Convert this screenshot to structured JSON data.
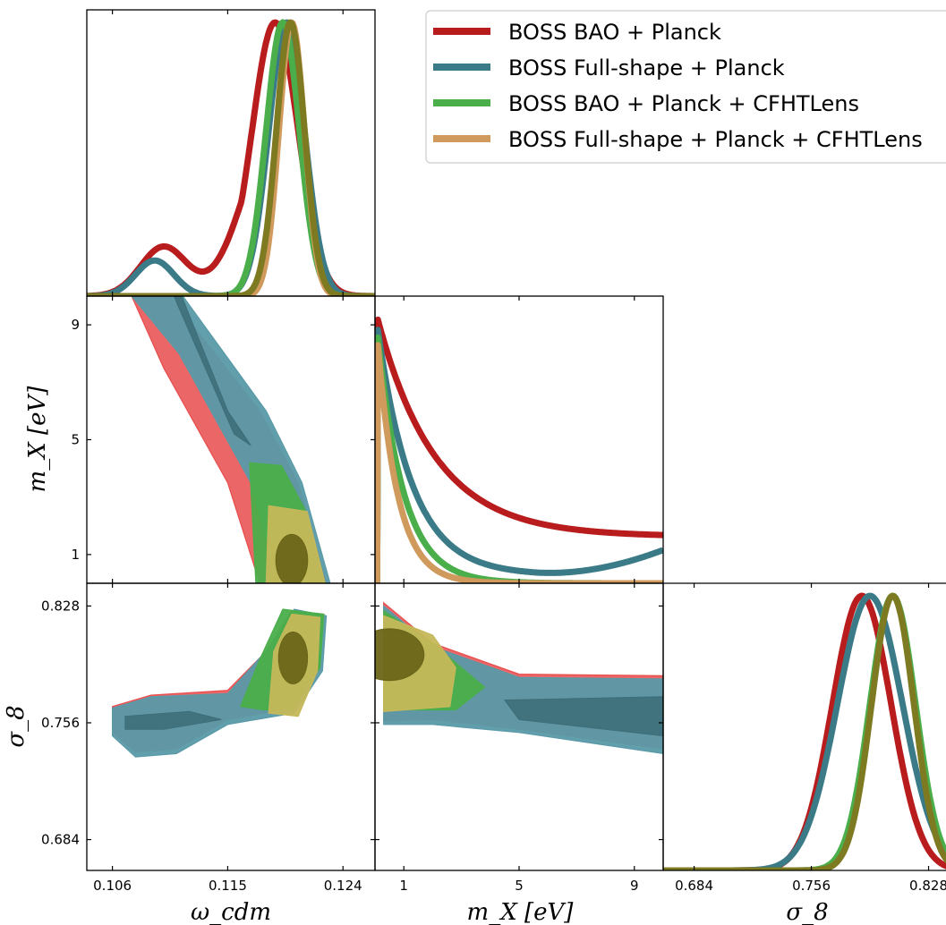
{
  "colors": {
    "bao": "#b81c1c",
    "full": "#3b7b88",
    "bao_cfht": "#4aae4a",
    "full_cfht": "#cf9a5c",
    "overlap_olive": "#7e7a22"
  },
  "legend": [
    {
      "label": "BOSS BAO + Planck",
      "color": "#b81c1c"
    },
    {
      "label": "BOSS Full-shape + Planck",
      "color": "#3b7b88"
    },
    {
      "label": "BOSS BAO + Planck + CFHTLens",
      "color": "#4aae4a"
    },
    {
      "label": "BOSS Full-shape + Planck + CFHTLens",
      "color": "#cf9a5c"
    }
  ],
  "axes": {
    "omega": {
      "label": "ω_cdm",
      "ticks": [
        "0.106",
        "0.115",
        "0.124"
      ],
      "tick_values": [
        0.106,
        0.115,
        0.124
      ],
      "range": [
        0.104,
        0.1265
      ]
    },
    "mx": {
      "label": "m_X [eV]",
      "ticks": [
        "1",
        "5",
        "9"
      ],
      "tick_values": [
        1,
        5,
        9
      ],
      "range": [
        0,
        10
      ]
    },
    "sigma8": {
      "label": "σ_8",
      "ticks": [
        "0.684",
        "0.756",
        "0.828"
      ],
      "tick_values": [
        0.684,
        0.756,
        0.828
      ],
      "range": [
        0.665,
        0.842
      ]
    }
  },
  "chart_data": {
    "type": "triangle",
    "parameters": [
      "ω_cdm",
      "m_X [eV]",
      "σ_8"
    ],
    "series": [
      {
        "name": "BOSS BAO + Planck",
        "peaks": {
          "omega_cdm": 0.1185,
          "m_X": 0.1,
          "sigma8": 0.787
        }
      },
      {
        "name": "BOSS Full-shape + Planck",
        "peaks": {
          "omega_cdm": 0.1195,
          "m_X": 0.1,
          "sigma8": 0.792
        }
      },
      {
        "name": "BOSS BAO + Planck + CFHTLens",
        "peaks": {
          "omega_cdm": 0.1192,
          "m_X": 0.1,
          "sigma8": 0.806
        }
      },
      {
        "name": "BOSS Full-shape + Planck + CFHTLens",
        "peaks": {
          "omega_cdm": 0.12,
          "m_X": 0.1,
          "sigma8": 0.806
        }
      }
    ]
  }
}
